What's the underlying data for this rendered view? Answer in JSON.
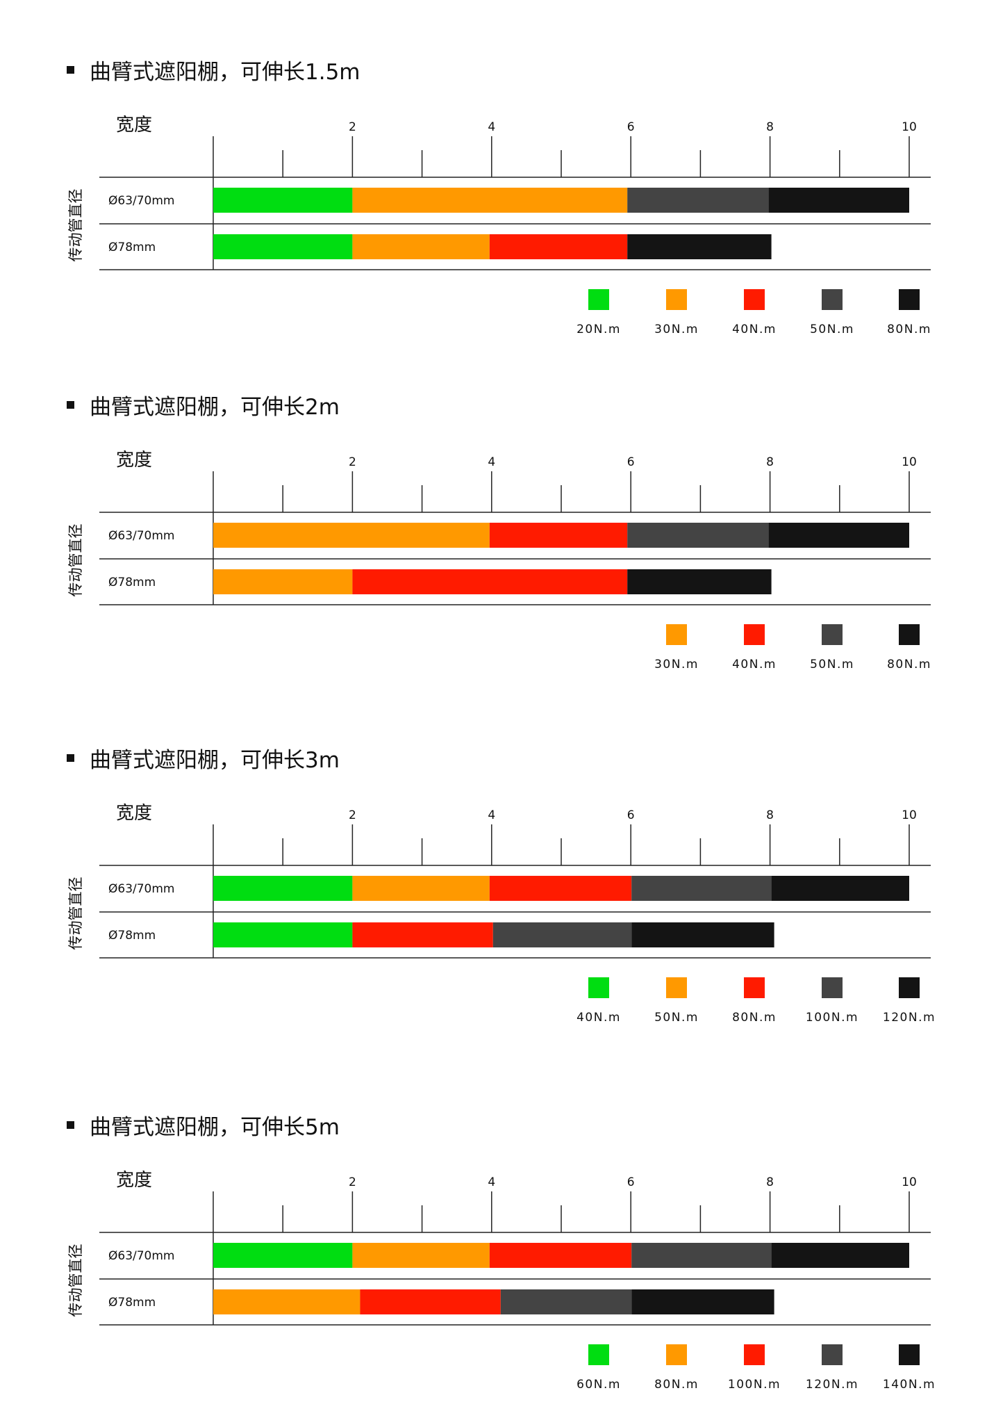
{
  "chart_data": [
    {
      "type": "bar",
      "title": "曲臂式遮阳棚，可伸长1.5m",
      "xlabel": "宽度",
      "ylabel": "传动管直径",
      "xlim": [
        0,
        10
      ],
      "xticks": [
        "2",
        "4",
        "6",
        "8",
        "10"
      ],
      "categories": [
        "Ø63/70mm",
        "Ø78mm"
      ],
      "legend": [
        "20N.m",
        "30N.m",
        "40N.m",
        "50N.m",
        "80N.m"
      ],
      "rows": [
        {
          "label": "Ø63/70mm",
          "segments": [
            {
              "series": "20N.m",
              "from": 0,
              "to": 2
            },
            {
              "series": "30N.m",
              "from": 2,
              "to": 5.95
            },
            {
              "series": "50N.m",
              "from": 5.95,
              "to": 7.98
            },
            {
              "series": "80N.m",
              "from": 7.98,
              "to": 10
            }
          ]
        },
        {
          "label": "Ø78mm",
          "segments": [
            {
              "series": "20N.m",
              "from": 0,
              "to": 2
            },
            {
              "series": "30N.m",
              "from": 2,
              "to": 3.97
            },
            {
              "series": "40N.m",
              "from": 3.97,
              "to": 5.95
            },
            {
              "series": "80N.m",
              "from": 5.95,
              "to": 8.02
            }
          ]
        }
      ]
    },
    {
      "type": "bar",
      "title": "曲臂式遮阳棚，可伸长2m",
      "xlabel": "宽度",
      "ylabel": "传动管直径",
      "xlim": [
        0,
        10
      ],
      "xticks": [
        "2",
        "4",
        "6",
        "8",
        "10"
      ],
      "categories": [
        "Ø63/70mm",
        "Ø78mm"
      ],
      "legend": [
        "30N.m",
        "40N.m",
        "50N.m",
        "80N.m"
      ],
      "rows": [
        {
          "label": "Ø63/70mm",
          "segments": [
            {
              "series": "30N.m",
              "from": 0,
              "to": 3.97
            },
            {
              "series": "40N.m",
              "from": 3.97,
              "to": 5.95
            },
            {
              "series": "50N.m",
              "from": 5.95,
              "to": 7.98
            },
            {
              "series": "80N.m",
              "from": 7.98,
              "to": 10
            }
          ]
        },
        {
          "label": "Ø78mm",
          "segments": [
            {
              "series": "30N.m",
              "from": 0,
              "to": 2
            },
            {
              "series": "40N.m",
              "from": 2,
              "to": 5.95
            },
            {
              "series": "80N.m",
              "from": 5.95,
              "to": 8.02
            }
          ]
        }
      ]
    },
    {
      "type": "bar",
      "title": "曲臂式遮阳棚，可伸长3m",
      "xlabel": "宽度",
      "ylabel": "传动管直径",
      "xlim": [
        0,
        10
      ],
      "xticks": [
        "2",
        "4",
        "6",
        "8",
        "10"
      ],
      "categories": [
        "Ø63/70mm",
        "Ø78mm"
      ],
      "legend": [
        "40N.m",
        "50N.m",
        "80N.m",
        "100N.m",
        "120N.m"
      ],
      "rows": [
        {
          "label": "Ø63/70mm",
          "segments": [
            {
              "series": "40N.m",
              "from": 0,
              "to": 2
            },
            {
              "series": "50N.m",
              "from": 2,
              "to": 3.97
            },
            {
              "series": "80N.m",
              "from": 3.97,
              "to": 6.01
            },
            {
              "series": "100N.m",
              "from": 6.01,
              "to": 8.02
            },
            {
              "series": "120N.m",
              "from": 8.02,
              "to": 10
            }
          ]
        },
        {
          "label": "Ø78mm",
          "segments": [
            {
              "series": "40N.m",
              "from": 0,
              "to": 2
            },
            {
              "series": "80N.m",
              "from": 2,
              "to": 4.02
            },
            {
              "series": "100N.m",
              "from": 4.02,
              "to": 6.01
            },
            {
              "series": "120N.m",
              "from": 6.01,
              "to": 8.06
            }
          ]
        }
      ]
    },
    {
      "type": "bar",
      "title": "曲臂式遮阳棚，可伸长5m",
      "xlabel": "宽度",
      "ylabel": "传动管直径",
      "xlim": [
        0,
        10
      ],
      "xticks": [
        "2",
        "4",
        "6",
        "8",
        "10"
      ],
      "categories": [
        "Ø63/70mm",
        "Ø78mm"
      ],
      "legend": [
        "60N.m",
        "80N.m",
        "100N.m",
        "120N.m",
        "140N.m"
      ],
      "rows": [
        {
          "label": "Ø63/70mm",
          "segments": [
            {
              "series": "60N.m",
              "from": 0,
              "to": 2
            },
            {
              "series": "80N.m",
              "from": 2,
              "to": 3.97
            },
            {
              "series": "100N.m",
              "from": 3.97,
              "to": 6.01
            },
            {
              "series": "120N.m",
              "from": 6.01,
              "to": 8.02
            },
            {
              "series": "140N.m",
              "from": 8.02,
              "to": 10
            }
          ]
        },
        {
          "label": "Ø78mm",
          "segments": [
            {
              "series": "80N.m",
              "from": 0,
              "to": 2.11
            },
            {
              "series": "100N.m",
              "from": 2.11,
              "to": 4.13
            },
            {
              "series": "120N.m",
              "from": 4.13,
              "to": 6.01
            },
            {
              "series": "140N.m",
              "from": 6.01,
              "to": 8.06
            }
          ]
        }
      ]
    }
  ],
  "colors": {
    "20N.m": "#00dd11",
    "30N.m": "#ff9900",
    "40N.m": "#ff1b00",
    "50N.m": "#444444",
    "80N.m": "#141414"
  },
  "panel_colors": [
    [
      "#00dd11",
      "#ff9900",
      "#ff1b00",
      "#444444",
      "#141414"
    ],
    [
      "#ff9900",
      "#ff1b00",
      "#444444",
      "#141414"
    ],
    [
      "#00dd11",
      "#ff9900",
      "#ff1b00",
      "#444444",
      "#141414"
    ],
    [
      "#00dd11",
      "#ff9900",
      "#ff1b00",
      "#444444",
      "#141414"
    ]
  ]
}
